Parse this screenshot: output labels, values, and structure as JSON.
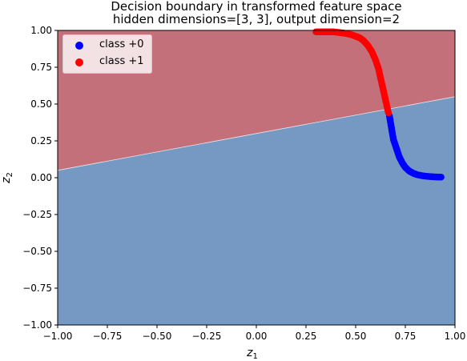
{
  "chart_data": {
    "type": "scatter",
    "title": "Decision boundary in transformed feature space",
    "subtitle": "hidden dimensions=[3, 3], output dimension=2",
    "xlabel": "z",
    "xlabel_sub": "1",
    "ylabel": "z",
    "ylabel_sub": "2",
    "xlim": [
      -1.0,
      1.0
    ],
    "ylim": [
      -1.0,
      1.0
    ],
    "xticks": [
      "−1.00",
      "−0.75",
      "−0.50",
      "−0.25",
      "0.00",
      "0.25",
      "0.50",
      "0.75",
      "1.00"
    ],
    "xtick_values": [
      -1.0,
      -0.75,
      -0.5,
      -0.25,
      0.0,
      0.25,
      0.5,
      0.75,
      1.0
    ],
    "yticks": [
      "1.00",
      "0.75",
      "0.50",
      "0.25",
      "0.00",
      "−0.25",
      "−0.50",
      "−0.75",
      "−1.00"
    ],
    "ytick_values": [
      1.0,
      0.75,
      0.5,
      0.25,
      0.0,
      -0.25,
      -0.5,
      -0.75,
      -1.0
    ],
    "grid": false,
    "legend_position": "top-left",
    "decision_boundary": {
      "points": [
        [
          -1.0,
          0.05
        ],
        [
          1.0,
          0.55
        ]
      ],
      "region_above_color": "#c4707a",
      "region_below_color": "#7599c2"
    },
    "series": [
      {
        "name": "class +0",
        "color": "#0000ff",
        "points": [
          [
            0.67,
            0.42
          ],
          [
            0.675,
            0.38
          ],
          [
            0.68,
            0.34
          ],
          [
            0.685,
            0.3
          ],
          [
            0.69,
            0.26
          ],
          [
            0.7,
            0.22
          ],
          [
            0.71,
            0.18
          ],
          [
            0.72,
            0.14
          ],
          [
            0.735,
            0.1
          ],
          [
            0.75,
            0.07
          ],
          [
            0.77,
            0.045
          ],
          [
            0.79,
            0.03
          ],
          [
            0.81,
            0.02
          ],
          [
            0.84,
            0.012
          ],
          [
            0.87,
            0.008
          ],
          [
            0.9,
            0.005
          ],
          [
            0.93,
            0.004
          ]
        ]
      },
      {
        "name": "class +1",
        "color": "#ff0000",
        "points": [
          [
            0.3,
            0.99
          ],
          [
            0.33,
            0.99
          ],
          [
            0.36,
            0.99
          ],
          [
            0.39,
            0.99
          ],
          [
            0.42,
            0.985
          ],
          [
            0.45,
            0.98
          ],
          [
            0.48,
            0.97
          ],
          [
            0.5,
            0.96
          ],
          [
            0.52,
            0.95
          ],
          [
            0.54,
            0.93
          ],
          [
            0.56,
            0.9
          ],
          [
            0.58,
            0.86
          ],
          [
            0.6,
            0.8
          ],
          [
            0.615,
            0.74
          ],
          [
            0.625,
            0.68
          ],
          [
            0.635,
            0.62
          ],
          [
            0.645,
            0.56
          ],
          [
            0.655,
            0.5
          ],
          [
            0.665,
            0.44
          ]
        ]
      }
    ]
  },
  "legend": {
    "items": [
      {
        "label": "class +0",
        "color": "#0000ff"
      },
      {
        "label": "class +1",
        "color": "#ff0000"
      }
    ]
  }
}
